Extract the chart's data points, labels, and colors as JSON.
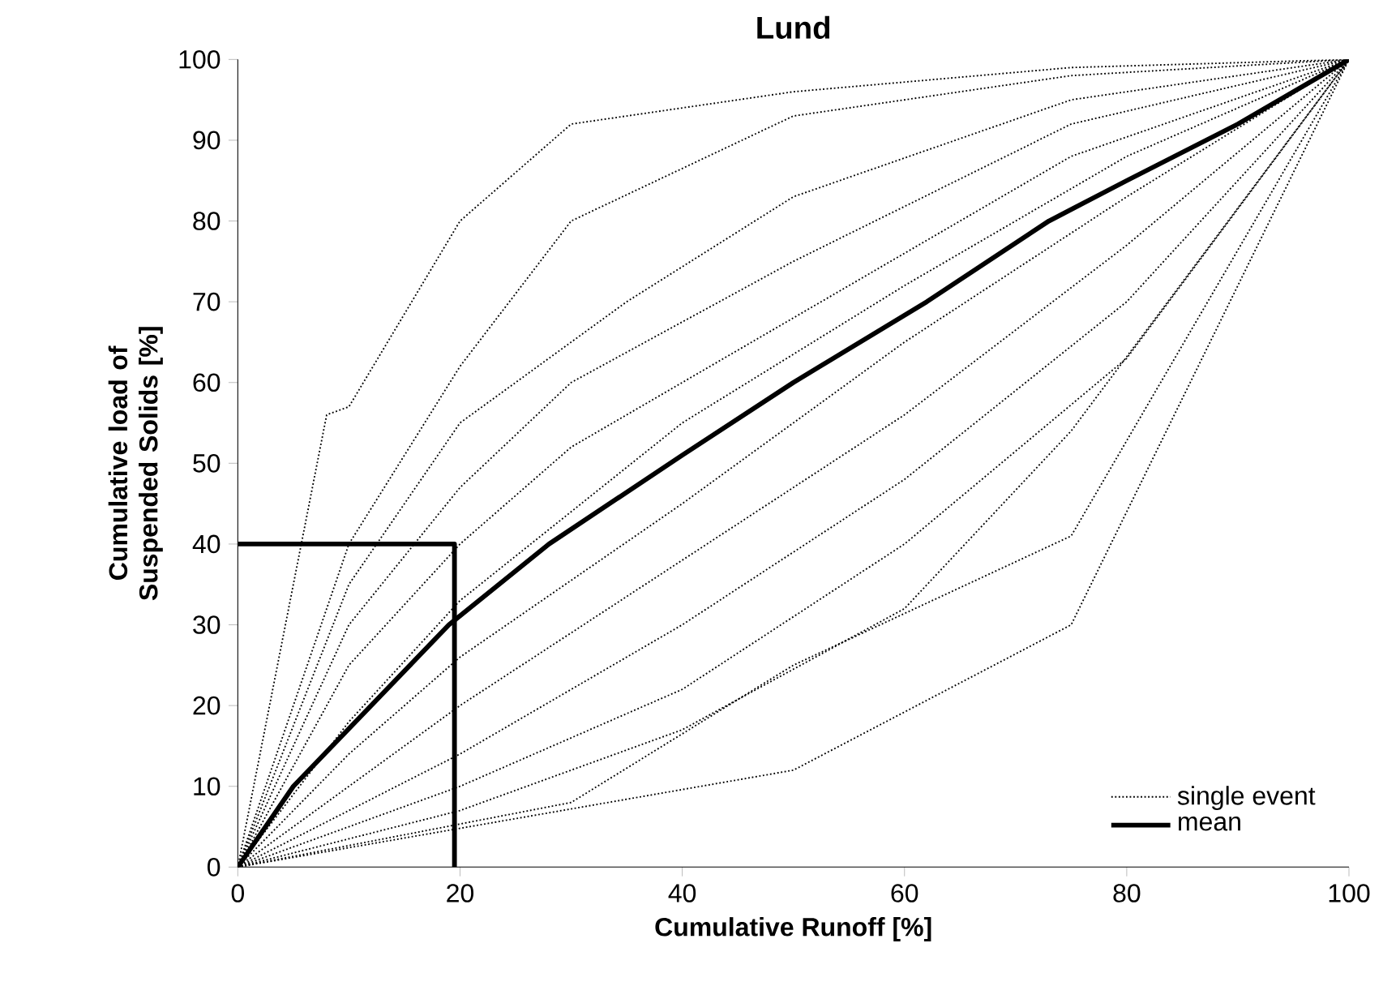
{
  "chart_data": {
    "type": "line",
    "title": "Lund",
    "xlabel": "Cumulative Runoff [%]",
    "ylabel": "Cumulative load of Suspended Solids [%]",
    "xlim": [
      0,
      100
    ],
    "ylim": [
      0,
      100
    ],
    "xticks": [
      0,
      20,
      40,
      60,
      80,
      100
    ],
    "yticks": [
      0,
      10,
      20,
      30,
      40,
      50,
      60,
      70,
      80,
      90,
      100
    ],
    "grid": false,
    "legend": "bottom right",
    "series": [
      {
        "name": "single event",
        "color": "#000000",
        "line_style": "dotted",
        "x": [
          0,
          8,
          10,
          20,
          30,
          50,
          75,
          100
        ],
        "values": [
          0,
          56,
          57,
          80,
          92,
          96,
          99,
          100
        ]
      },
      {
        "color": "#000000",
        "line_style": "dotted",
        "x": [
          0,
          10,
          20,
          30,
          50,
          75,
          100
        ],
        "values": [
          0,
          40,
          62,
          80,
          93,
          98,
          100
        ]
      },
      {
        "color": "#000000",
        "line_style": "dotted",
        "x": [
          0,
          10,
          20,
          35,
          50,
          75,
          100
        ],
        "values": [
          0,
          35,
          55,
          70,
          83,
          95,
          100
        ]
      },
      {
        "color": "#000000",
        "line_style": "dotted",
        "x": [
          0,
          10,
          20,
          30,
          50,
          75,
          100
        ],
        "values": [
          0,
          30,
          47,
          60,
          75,
          92,
          100
        ]
      },
      {
        "color": "#000000",
        "line_style": "dotted",
        "x": [
          0,
          10,
          20,
          30,
          50,
          75,
          100
        ],
        "values": [
          0,
          25,
          40,
          52,
          68,
          88,
          100
        ]
      },
      {
        "color": "#000000",
        "line_style": "dotted",
        "x": [
          0,
          10,
          20,
          40,
          60,
          80,
          100
        ],
        "values": [
          0,
          18,
          33,
          55,
          72,
          88,
          100
        ]
      },
      {
        "color": "#000000",
        "line_style": "dotted",
        "x": [
          0,
          10,
          20,
          40,
          60,
          80,
          100
        ],
        "values": [
          0,
          14,
          26,
          45,
          65,
          83,
          100
        ]
      },
      {
        "color": "#000000",
        "line_style": "dotted",
        "x": [
          0,
          10,
          20,
          40,
          60,
          80,
          100
        ],
        "values": [
          0,
          10,
          20,
          38,
          56,
          77,
          100
        ]
      },
      {
        "color": "#000000",
        "line_style": "dotted",
        "x": [
          0,
          10,
          20,
          40,
          60,
          80,
          100
        ],
        "values": [
          0,
          7,
          14,
          30,
          48,
          70,
          100
        ]
      },
      {
        "color": "#000000",
        "line_style": "dotted",
        "x": [
          0,
          10,
          20,
          40,
          60,
          80,
          100
        ],
        "values": [
          0,
          5,
          10,
          22,
          40,
          63,
          100
        ]
      },
      {
        "color": "#000000",
        "line_style": "dotted",
        "x": [
          0,
          20,
          40,
          60,
          75,
          100
        ],
        "values": [
          0,
          7,
          17,
          32,
          54,
          100
        ]
      },
      {
        "color": "#000000",
        "line_style": "dotted",
        "x": [
          0,
          30,
          50,
          75,
          100
        ],
        "values": [
          0,
          8,
          25,
          41,
          100
        ]
      },
      {
        "color": "#000000",
        "line_style": "dotted",
        "x": [
          0,
          50,
          75,
          100
        ],
        "values": [
          0,
          12,
          30,
          100
        ]
      },
      {
        "color": "#000000",
        "line_style": "solid",
        "x": [
          0,
          19.5,
          19.5
        ],
        "values": [
          40,
          40,
          0
        ]
      },
      {
        "name": "mean",
        "color": "#000000",
        "line_style": "solid",
        "x": [
          0,
          5,
          12,
          19,
          28,
          40,
          50,
          62,
          73,
          80,
          90,
          100
        ],
        "values": [
          0,
          10,
          20,
          30,
          40,
          51,
          60,
          70,
          80,
          85,
          92,
          100
        ]
      }
    ]
  }
}
